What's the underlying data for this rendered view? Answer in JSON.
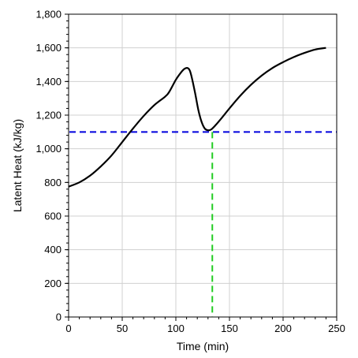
{
  "chart_data": {
    "type": "line",
    "title": "",
    "xlabel": "Time (min)",
    "ylabel": "Latent Heat (kJ/kg)",
    "xlim": [
      0,
      250
    ],
    "ylim": [
      0,
      1800
    ],
    "x_ticks": [
      0,
      50,
      100,
      150,
      200,
      250
    ],
    "y_ticks": [
      0,
      200,
      400,
      600,
      800,
      1000,
      1200,
      1400,
      1600,
      1800
    ],
    "x_tick_labels": [
      "0",
      "50",
      "100",
      "150",
      "200",
      "250"
    ],
    "y_tick_labels": [
      "0",
      "200",
      "400",
      "600",
      "800",
      "1,000",
      "1,200",
      "1,400",
      "1,600",
      "1,800"
    ],
    "grid": true,
    "series": [
      {
        "style": "solid",
        "color": "#000000",
        "x": [
          0,
          10,
          20,
          30,
          40,
          50,
          60,
          70,
          80,
          90,
          94,
          100,
          105,
          108,
          111,
          113,
          115,
          118,
          121,
          124,
          127,
          130,
          133,
          137,
          143,
          150,
          160,
          170,
          180,
          190,
          200,
          210,
          220,
          230,
          240
        ],
        "y": [
          775,
          800,
          840,
          895,
          960,
          1040,
          1120,
          1195,
          1260,
          1310,
          1340,
          1410,
          1455,
          1475,
          1480,
          1465,
          1420,
          1330,
          1230,
          1160,
          1120,
          1110,
          1115,
          1140,
          1185,
          1240,
          1315,
          1380,
          1435,
          1480,
          1515,
          1545,
          1570,
          1590,
          1600
        ]
      }
    ],
    "reference_lines": [
      {
        "orientation": "horizontal",
        "y": 1100,
        "x_range": [
          0,
          250
        ],
        "style": "dashed",
        "color": "#0000dd"
      },
      {
        "orientation": "vertical",
        "x": 134,
        "y_range": [
          0,
          1100
        ],
        "style": "dashed",
        "color": "#22cc22"
      }
    ]
  }
}
